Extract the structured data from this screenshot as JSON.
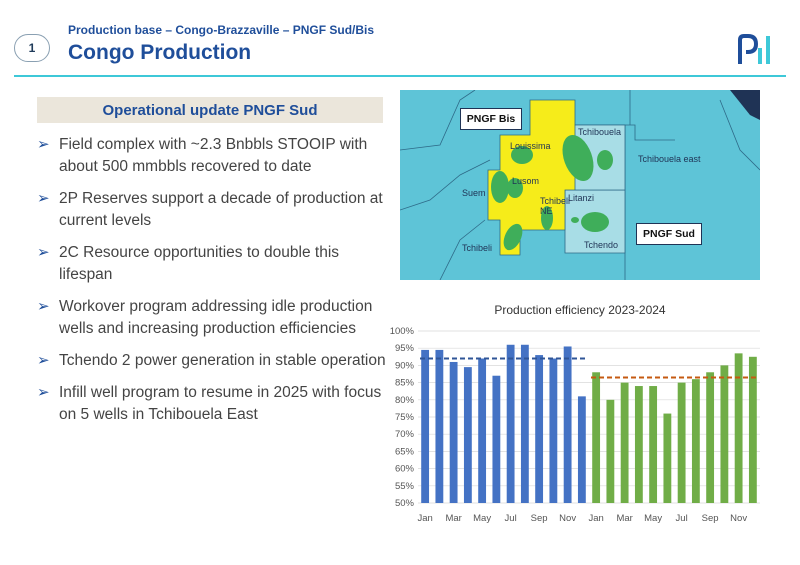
{
  "header": {
    "badge": "1",
    "subtitle": "Production base – Congo-Brazzaville – PNGF Sud/Bis",
    "title": "Congo Production"
  },
  "section": {
    "title": "Operational update PNGF Sud"
  },
  "bullets": [
    "Field complex with ~2.3 Bnbbls STOOIP with about 500 mmbbls recovered to date",
    "2P Reserves support a decade of production at current levels",
    "2C Resource opportunities to double this lifespan",
    "Workover program addressing idle production wells and increasing production efficiencies",
    "Tchendo 2 power generation in stable operation",
    "Infill well program to resume in 2025 with focus on 5 wells in Tchibouela East"
  ],
  "map": {
    "labels": {
      "pngf_bis": "PNGF Bis",
      "pngf_sud": "PNGF Sud",
      "louissima": "Louissima",
      "lusom": "Lusom",
      "suem": "Suem",
      "tchibeli_ne": "Tchibeli NE",
      "tchibeli": "Tchibeli",
      "tchibouela": "Tchibouela",
      "tchibouela_east": "Tchibouela east",
      "litanzi": "Litanzi",
      "tchendo": "Tchendo"
    },
    "colors": {
      "sea": "#5ec4d7",
      "block": "#f6ec1a",
      "field": "#3fae5a",
      "sud_area": "#a8dde6"
    }
  },
  "chart_data": {
    "type": "bar",
    "title": "Production efficiency 2023-2024",
    "ylim": [
      50,
      100
    ],
    "yticks": [
      "50%",
      "55%",
      "60%",
      "65%",
      "70%",
      "75%",
      "80%",
      "85%",
      "90%",
      "95%",
      "100%"
    ],
    "x_tick_labels": [
      "Jan",
      "Mar",
      "May",
      "Jul",
      "Sep",
      "Nov",
      "Jan",
      "Mar",
      "May",
      "Jul",
      "Sep",
      "Nov"
    ],
    "series": [
      {
        "values": [
          94.5,
          94.5,
          91,
          89.5,
          92,
          87,
          96,
          96,
          93,
          92,
          95.5,
          81
        ],
        "color": "#4472c4",
        "average": 92,
        "average_color": "#2f5597"
      },
      {
        "values": [
          88,
          80,
          85,
          84,
          84,
          76,
          85,
          86,
          88,
          90,
          93.5,
          92.5
        ],
        "color": "#70ad47",
        "average": 86.5,
        "average_color": "#c55a11"
      }
    ],
    "grid": "horizontal"
  }
}
